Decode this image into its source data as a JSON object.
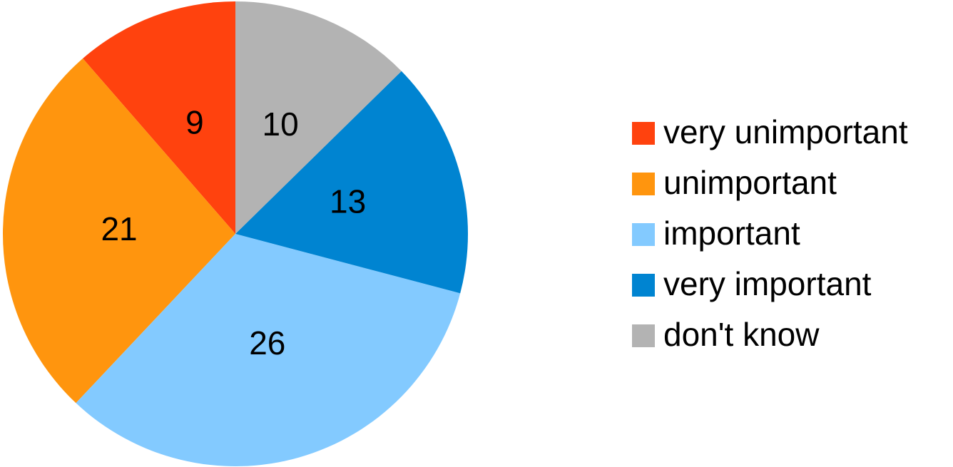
{
  "chart_data": {
    "type": "pie",
    "categories": [
      "very unimportant",
      "unimportant",
      "important",
      "very important",
      "don't know"
    ],
    "values": [
      9,
      21,
      26,
      13,
      10
    ],
    "colors": [
      "#ff420e",
      "#ff950e",
      "#83caff",
      "#0084d1",
      "#b3b3b3"
    ],
    "direction": "counterclockwise",
    "legend": "right"
  }
}
